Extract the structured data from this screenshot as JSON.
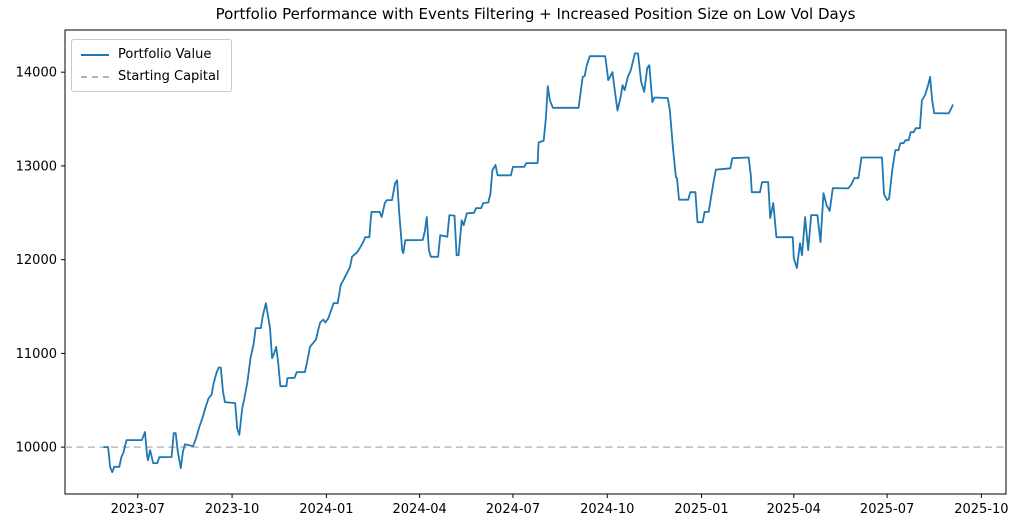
{
  "chart_data": {
    "type": "line",
    "title": "Portfolio Performance with Events Filtering + Increased Position Size on Low Vol Days",
    "xlabel": "",
    "ylabel": "",
    "grid": false,
    "background": "#ffffff",
    "x_axis": {
      "unit": "days since 2023-06-01",
      "range": [
        -41,
        877
      ],
      "tick_positions": [
        30,
        122,
        214,
        305,
        396,
        488,
        580,
        670,
        761,
        853
      ],
      "tick_labels": [
        "2023-07",
        "2023-10",
        "2024-01",
        "2024-04",
        "2024-07",
        "2024-10",
        "2025-01",
        "2025-04",
        "2025-07",
        "2025-10"
      ]
    },
    "y_axis": {
      "range": [
        9500,
        14450
      ],
      "tick_positions": [
        10000,
        11000,
        12000,
        13000,
        14000
      ],
      "tick_labels": [
        "10000",
        "11000",
        "12000",
        "13000",
        "14000"
      ]
    },
    "legend": {
      "position": "upper-left",
      "items": [
        {
          "label": "Portfolio Value",
          "color": "#1f77b4",
          "style": "solid"
        },
        {
          "label": "Starting Capital",
          "color": "#b3b3b3",
          "style": "dashed"
        }
      ]
    },
    "baseline": {
      "name": "Starting Capital",
      "value": 10000,
      "color": "#bbbbbb",
      "dashed": true
    },
    "series": [
      {
        "name": "Portfolio Value",
        "color": "#1f77b4",
        "line_width": 1.8,
        "points": [
          [
            -3,
            10000
          ],
          [
            1,
            10000
          ],
          [
            3,
            9790
          ],
          [
            5,
            9733
          ],
          [
            7,
            9790
          ],
          [
            12,
            9790
          ],
          [
            14,
            9895
          ],
          [
            16,
            9940
          ],
          [
            19,
            10075
          ],
          [
            34,
            10075
          ],
          [
            37,
            10160
          ],
          [
            39,
            9915
          ],
          [
            40,
            9861
          ],
          [
            42,
            9968
          ],
          [
            45,
            9829
          ],
          [
            49,
            9830
          ],
          [
            51,
            9893
          ],
          [
            63,
            9895
          ],
          [
            65,
            10150
          ],
          [
            67,
            10150
          ],
          [
            69,
            9950
          ],
          [
            72,
            9776
          ],
          [
            74,
            9950
          ],
          [
            76,
            10030
          ],
          [
            84,
            10010
          ],
          [
            87,
            10100
          ],
          [
            90,
            10215
          ],
          [
            93,
            10310
          ],
          [
            96,
            10420
          ],
          [
            99,
            10520
          ],
          [
            102,
            10560
          ],
          [
            104,
            10680
          ],
          [
            107,
            10800
          ],
          [
            109,
            10850
          ],
          [
            111,
            10850
          ],
          [
            113,
            10600
          ],
          [
            115,
            10480
          ],
          [
            125,
            10470
          ],
          [
            127,
            10200
          ],
          [
            129,
            10130
          ],
          [
            132,
            10420
          ],
          [
            134,
            10520
          ],
          [
            137,
            10700
          ],
          [
            140,
            10950
          ],
          [
            143,
            11100
          ],
          [
            145,
            11270
          ],
          [
            150,
            11270
          ],
          [
            152,
            11400
          ],
          [
            155,
            11536
          ],
          [
            157,
            11400
          ],
          [
            159,
            11270
          ],
          [
            161,
            10950
          ],
          [
            163,
            11000
          ],
          [
            165,
            11070
          ],
          [
            167,
            10900
          ],
          [
            169,
            10650
          ],
          [
            175,
            10650
          ],
          [
            176,
            10736
          ],
          [
            183,
            10740
          ],
          [
            185,
            10800
          ],
          [
            193,
            10800
          ],
          [
            196,
            10950
          ],
          [
            198,
            11070
          ],
          [
            201,
            11110
          ],
          [
            204,
            11150
          ],
          [
            206,
            11250
          ],
          [
            208,
            11330
          ],
          [
            211,
            11360
          ],
          [
            213,
            11330
          ],
          [
            216,
            11376
          ],
          [
            218,
            11440
          ],
          [
            221,
            11536
          ],
          [
            225,
            11536
          ],
          [
            228,
            11730
          ],
          [
            231,
            11790
          ],
          [
            234,
            11856
          ],
          [
            237,
            11920
          ],
          [
            239,
            12030
          ],
          [
            244,
            12080
          ],
          [
            247,
            12130
          ],
          [
            250,
            12190
          ],
          [
            252,
            12240
          ],
          [
            256,
            12240
          ],
          [
            257,
            12400
          ],
          [
            258,
            12510
          ],
          [
            266,
            12510
          ],
          [
            268,
            12455
          ],
          [
            271,
            12603
          ],
          [
            273,
            12635
          ],
          [
            278,
            12635
          ],
          [
            281,
            12816
          ],
          [
            283,
            12848
          ],
          [
            285,
            12500
          ],
          [
            288,
            12101
          ],
          [
            289,
            12070
          ],
          [
            291,
            12208
          ],
          [
            308,
            12210
          ],
          [
            310,
            12300
          ],
          [
            312,
            12455
          ],
          [
            314,
            12100
          ],
          [
            316,
            12030
          ],
          [
            323,
            12030
          ],
          [
            325,
            12260
          ],
          [
            332,
            12245
          ],
          [
            334,
            12475
          ],
          [
            339,
            12470
          ],
          [
            341,
            12048
          ],
          [
            343,
            12048
          ],
          [
            346,
            12420
          ],
          [
            348,
            12368
          ],
          [
            351,
            12495
          ],
          [
            358,
            12500
          ],
          [
            360,
            12550
          ],
          [
            365,
            12550
          ],
          [
            367,
            12603
          ],
          [
            372,
            12610
          ],
          [
            374,
            12700
          ],
          [
            376,
            12955
          ],
          [
            379,
            13010
          ],
          [
            381,
            12900
          ],
          [
            394,
            12900
          ],
          [
            396,
            12990
          ],
          [
            407,
            12990
          ],
          [
            409,
            13030
          ],
          [
            420,
            13030
          ],
          [
            421,
            13250
          ],
          [
            426,
            13270
          ],
          [
            428,
            13500
          ],
          [
            430,
            13850
          ],
          [
            432,
            13700
          ],
          [
            435,
            13620
          ],
          [
            460,
            13620
          ],
          [
            462,
            13780
          ],
          [
            464,
            13950
          ],
          [
            466,
            13960
          ],
          [
            468,
            14075
          ],
          [
            471,
            14170
          ],
          [
            486,
            14170
          ],
          [
            489,
            13915
          ],
          [
            493,
            14000
          ],
          [
            496,
            13750
          ],
          [
            498,
            13590
          ],
          [
            501,
            13733
          ],
          [
            503,
            13861
          ],
          [
            505,
            13808
          ],
          [
            508,
            13950
          ],
          [
            511,
            14021
          ],
          [
            515,
            14200
          ],
          [
            518,
            14200
          ],
          [
            521,
            13900
          ],
          [
            524,
            13790
          ],
          [
            527,
            14043
          ],
          [
            529,
            14075
          ],
          [
            532,
            13680
          ],
          [
            534,
            13730
          ],
          [
            547,
            13725
          ],
          [
            549,
            13600
          ],
          [
            552,
            13200
          ],
          [
            555,
            12880
          ],
          [
            556,
            12870
          ],
          [
            558,
            12640
          ],
          [
            567,
            12640
          ],
          [
            569,
            12720
          ],
          [
            574,
            12720
          ],
          [
            576,
            12400
          ],
          [
            581,
            12400
          ],
          [
            583,
            12510
          ],
          [
            587,
            12510
          ],
          [
            589,
            12650
          ],
          [
            592,
            12850
          ],
          [
            594,
            12960
          ],
          [
            608,
            12975
          ],
          [
            610,
            13082
          ],
          [
            626,
            13090
          ],
          [
            628,
            12900
          ],
          [
            629,
            12720
          ],
          [
            637,
            12720
          ],
          [
            639,
            12827
          ],
          [
            645,
            12827
          ],
          [
            647,
            12443
          ],
          [
            650,
            12603
          ],
          [
            653,
            12240
          ],
          [
            669,
            12240
          ],
          [
            670,
            12016
          ],
          [
            673,
            11910
          ],
          [
            676,
            12176
          ],
          [
            678,
            12048
          ],
          [
            681,
            12453
          ],
          [
            684,
            12101
          ],
          [
            687,
            12475
          ],
          [
            693,
            12475
          ],
          [
            696,
            12187
          ],
          [
            699,
            12710
          ],
          [
            702,
            12580
          ],
          [
            705,
            12520
          ],
          [
            708,
            12763
          ],
          [
            723,
            12760
          ],
          [
            726,
            12800
          ],
          [
            729,
            12870
          ],
          [
            733,
            12870
          ],
          [
            736,
            13090
          ],
          [
            756,
            13090
          ],
          [
            758,
            12700
          ],
          [
            761,
            12635
          ],
          [
            763,
            12650
          ],
          [
            766,
            12950
          ],
          [
            769,
            13168
          ],
          [
            772,
            13168
          ],
          [
            774,
            13242
          ],
          [
            777,
            13242
          ],
          [
            779,
            13274
          ],
          [
            782,
            13274
          ],
          [
            784,
            13360
          ],
          [
            787,
            13360
          ],
          [
            789,
            13402
          ],
          [
            793,
            13402
          ],
          [
            795,
            13700
          ],
          [
            798,
            13754
          ],
          [
            801,
            13860
          ],
          [
            803,
            13950
          ],
          [
            805,
            13700
          ],
          [
            807,
            13562
          ],
          [
            821,
            13560
          ],
          [
            823,
            13600
          ],
          [
            825,
            13648
          ]
        ]
      }
    ]
  }
}
